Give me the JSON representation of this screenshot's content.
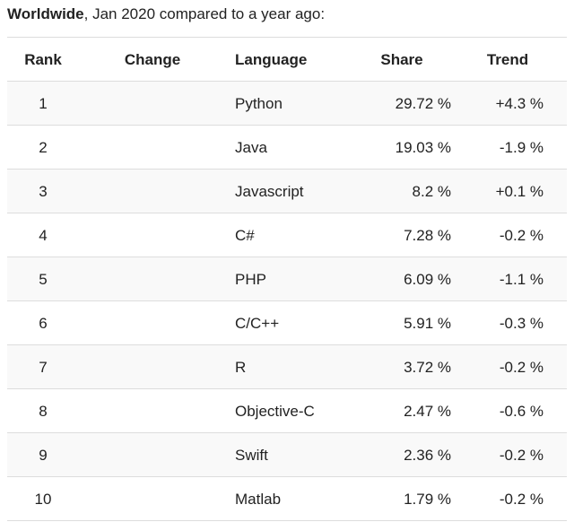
{
  "caption": {
    "bold": "Worldwide",
    "rest": ", Jan 2020 compared to a year ago:"
  },
  "headers": {
    "rank": "Rank",
    "change": "Change",
    "language": "Language",
    "share": "Share",
    "trend": "Trend"
  },
  "rows": [
    {
      "rank": "1",
      "change": "",
      "language": "Python",
      "share": "29.72 %",
      "trend": "+4.3 %"
    },
    {
      "rank": "2",
      "change": "",
      "language": "Java",
      "share": "19.03 %",
      "trend": "-1.9 %"
    },
    {
      "rank": "3",
      "change": "",
      "language": "Javascript",
      "share": "8.2 %",
      "trend": "+0.1 %"
    },
    {
      "rank": "4",
      "change": "",
      "language": "C#",
      "share": "7.28 %",
      "trend": "-0.2 %"
    },
    {
      "rank": "5",
      "change": "",
      "language": "PHP",
      "share": "6.09 %",
      "trend": "-1.1 %"
    },
    {
      "rank": "6",
      "change": "",
      "language": "C/C++",
      "share": "5.91 %",
      "trend": "-0.3 %"
    },
    {
      "rank": "7",
      "change": "",
      "language": "R",
      "share": "3.72 %",
      "trend": "-0.2 %"
    },
    {
      "rank": "8",
      "change": "",
      "language": "Objective-C",
      "share": "2.47 %",
      "trend": "-0.6 %"
    },
    {
      "rank": "9",
      "change": "",
      "language": "Swift",
      "share": "2.36 %",
      "trend": "-0.2 %"
    },
    {
      "rank": "10",
      "change": "",
      "language": "Matlab",
      "share": "1.79 %",
      "trend": "-0.2 %"
    }
  ]
}
